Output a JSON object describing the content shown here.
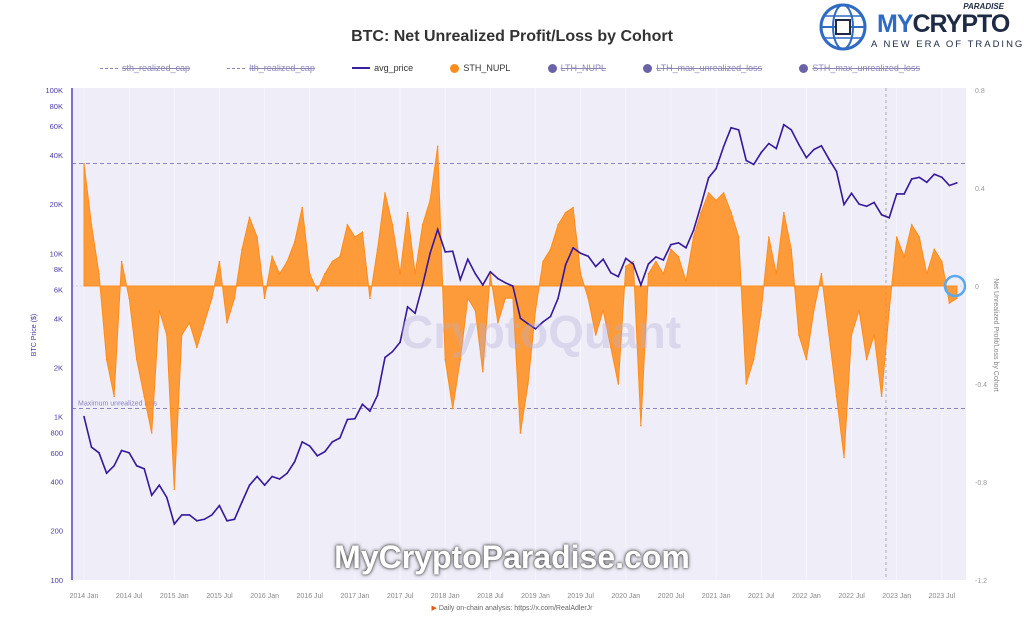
{
  "logo": {
    "brand_my": "MY",
    "brand_crypto": "CRYPTO",
    "paradise": "PARADISE",
    "tagline": "A NEW ERA OF TRADING"
  },
  "watermark": "MyCryptoParadise.com",
  "cq_watermark": "CryptoQuant",
  "source_note": "Daily on-chain analysis: https://x.com/RealAdlerJr",
  "colors": {
    "sth_nupl": "#ff8c1a",
    "avg_price": "#35189a",
    "axis": "#7b6fd0",
    "plot_bg": "#eeedf8"
  },
  "chart_data": {
    "type": "area",
    "title": "BTC: Net Unrealized Profit/Loss by Cohort",
    "legend": [
      {
        "name": "sth_realized_cap",
        "style": "dashed",
        "active": false
      },
      {
        "name": "lth_realized_cap",
        "style": "dashed",
        "active": false
      },
      {
        "name": "avg_price",
        "style": "line",
        "active": true
      },
      {
        "name": "STH_NUPL",
        "style": "dot",
        "color": "#ff8c1a",
        "active": true
      },
      {
        "name": "LTH_NUPL",
        "style": "dot",
        "active": false
      },
      {
        "name": "LTH_max_unrealized_loss",
        "style": "dot",
        "active": false
      },
      {
        "name": "STH_max_unrealized_loss",
        "style": "dot",
        "active": false
      }
    ],
    "legend_position": "top",
    "ylabel_left": "BTC Price ($)",
    "ylabel_right": "Net Unrealized Profit/Loss by Cohort",
    "y_left_scale": "log",
    "y_left_range": [
      100,
      100000
    ],
    "y_left_ticks": [
      "100K",
      "80K",
      "60K",
      "40K",
      "20K",
      "10K",
      "8K",
      "6K",
      "4K",
      "2K",
      "1K",
      "800",
      "600",
      "400",
      "200",
      "100"
    ],
    "y_left_tick_values": [
      100000,
      80000,
      60000,
      40000,
      20000,
      10000,
      8000,
      6000,
      4000,
      2000,
      1000,
      800,
      600,
      400,
      200,
      100
    ],
    "y_right_range": [
      -1.2,
      0.8
    ],
    "y_right_ticks": [
      "0.8",
      "0.4",
      "0",
      "-0.4",
      "-0.8",
      "-1.2"
    ],
    "x_ticks": [
      "2014 Jan",
      "2014 Jul",
      "2015 Jan",
      "2015 Jul",
      "2016 Jan",
      "2016 Jul",
      "2017 Jan",
      "2017 Jul",
      "2018 Jan",
      "2018 Jul",
      "2019 Jan",
      "2019 Jul",
      "2020 Jan",
      "2020 Jul",
      "2021 Jan",
      "2021 Jul",
      "2022 Jan",
      "2022 Jul",
      "2023 Jan",
      "2023 Jul"
    ],
    "x_start": "2014-01",
    "frequency": "monthly",
    "reference_lines": [
      {
        "axis": "right",
        "value": 0.5
      },
      {
        "axis": "right",
        "value": -0.5,
        "label": "Maximum unrealized loss"
      },
      {
        "axis": "right",
        "value": 0
      }
    ],
    "series": [
      {
        "name": "avg_price",
        "axis": "left",
        "values": [
          1000,
          650,
          600,
          450,
          500,
          620,
          600,
          500,
          480,
          330,
          380,
          320,
          220,
          250,
          250,
          230,
          235,
          250,
          285,
          230,
          235,
          300,
          380,
          430,
          380,
          430,
          415,
          450,
          530,
          700,
          660,
          575,
          610,
          700,
          740,
          960,
          970,
          1190,
          1080,
          1350,
          2300,
          2500,
          2850,
          4700,
          4300,
          6400,
          10000,
          14000,
          10200,
          10300,
          6900,
          9200,
          7500,
          6400,
          7700,
          7000,
          6600,
          6300,
          4000,
          3700,
          3450,
          3800,
          4100,
          5300,
          8500,
          10800,
          10000,
          9600,
          8300,
          9200,
          7600,
          7200,
          9300,
          8600,
          6400,
          8600,
          9500,
          9100,
          11300,
          11600,
          10800,
          13800,
          19700,
          29000,
          33000,
          45000,
          58800,
          57000,
          37000,
          35000,
          41500,
          47000,
          43800,
          61300,
          57000,
          46300,
          38500,
          43200,
          45500,
          37700,
          31800,
          19900,
          23300,
          20000,
          19400,
          20500,
          17200,
          16500,
          23100,
          23100,
          28500,
          29200,
          27200,
          30500,
          29200,
          26000,
          27000
        ]
      },
      {
        "name": "STH_NUPL",
        "axis": "right",
        "values": [
          0.5,
          0.25,
          0.05,
          -0.3,
          -0.45,
          0.1,
          -0.05,
          -0.3,
          -0.45,
          -0.6,
          -0.1,
          -0.2,
          -0.83,
          -0.2,
          -0.15,
          -0.25,
          -0.15,
          -0.05,
          0.1,
          -0.15,
          -0.05,
          0.15,
          0.28,
          0.2,
          -0.05,
          0.12,
          0.05,
          0.1,
          0.18,
          0.32,
          0.05,
          -0.02,
          0.05,
          0.1,
          0.12,
          0.25,
          0.2,
          0.22,
          -0.05,
          0.15,
          0.38,
          0.25,
          0.05,
          0.3,
          0.05,
          0.25,
          0.35,
          0.57,
          -0.3,
          -0.5,
          -0.3,
          -0.05,
          -0.1,
          -0.35,
          0.05,
          -0.15,
          -0.05,
          -0.05,
          -0.6,
          -0.4,
          -0.1,
          0.1,
          0.15,
          0.25,
          0.3,
          0.32,
          0.05,
          -0.05,
          -0.2,
          -0.1,
          -0.25,
          -0.4,
          0.08,
          0.1,
          -0.57,
          0.05,
          0.1,
          0.05,
          0.15,
          0.12,
          0.02,
          0.2,
          0.3,
          0.38,
          0.35,
          0.38,
          0.3,
          0.2,
          -0.4,
          -0.3,
          -0.1,
          0.2,
          0.05,
          0.3,
          0.15,
          -0.2,
          -0.3,
          -0.1,
          0.05,
          -0.2,
          -0.45,
          -0.7,
          -0.2,
          -0.1,
          -0.3,
          -0.2,
          -0.45,
          -0.1,
          0.2,
          0.12,
          0.25,
          0.2,
          0.05,
          0.15,
          0.1,
          -0.07,
          -0.05
        ]
      }
    ]
  }
}
